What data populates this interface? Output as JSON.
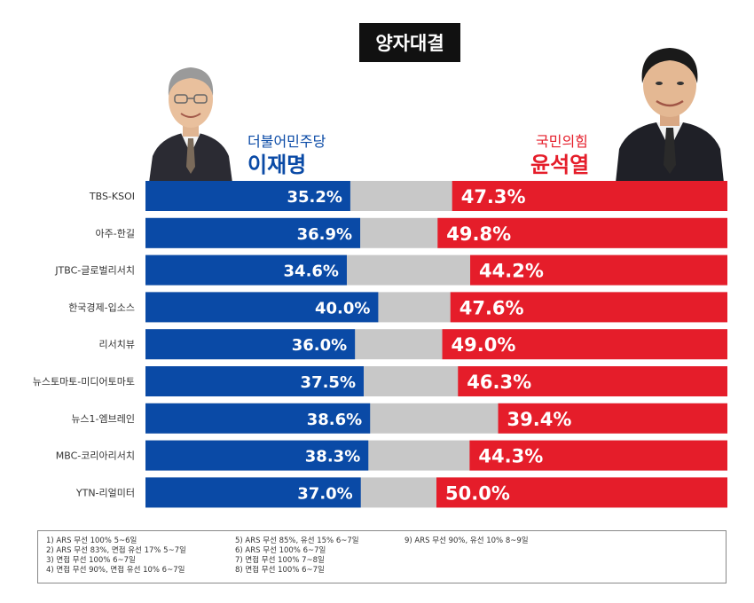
{
  "title": "양자대결",
  "candidates": {
    "left": {
      "party": "더불어민주당",
      "name": "이재명",
      "color": "#0a4aa6"
    },
    "right": {
      "party": "국민의힘",
      "name": "윤석열",
      "color": "#e51d2a"
    }
  },
  "chart_data": {
    "type": "bar",
    "subtype": "diverging-stacked-horizontal",
    "categories": [
      "TBS-KSOI",
      "아주-한길",
      "JTBC-글로벌리서치",
      "한국경제-입소스",
      "리서치뷰",
      "뉴스토마토-미디어토마토",
      "뉴스1-엠브레인",
      "MBC-코리아리서치",
      "YTN-리얼미터"
    ],
    "series": [
      {
        "name": "이재명",
        "color": "#0a4aa6",
        "values": [
          35.2,
          36.9,
          34.6,
          40.0,
          36.0,
          37.5,
          38.6,
          38.3,
          37.0
        ],
        "labels": [
          "35.2%",
          "36.9%",
          "34.6%",
          "40.0%",
          "36.0%",
          "37.5%",
          "38.6%",
          "38.3%",
          "37.0%"
        ]
      },
      {
        "name": "윤석열",
        "color": "#e51d2a",
        "values": [
          47.3,
          49.8,
          44.2,
          47.6,
          49.0,
          46.3,
          39.4,
          44.3,
          50.0
        ],
        "labels": [
          "47.3%",
          "49.8%",
          "44.2%",
          "47.6%",
          "49.0%",
          "46.3%",
          "39.4%",
          "44.3%",
          "50.0%"
        ]
      }
    ],
    "remainder_color": "#c8c8c8",
    "xlim": [
      0,
      100
    ]
  },
  "footnotes": {
    "col1": [
      "1) ARS 무선 100% 5~6일",
      "2) ARS 무선 83%, 면접 유선 17% 5~7일",
      "3) 면접 무선 100% 6~7일",
      "4) 면접 무선 90%, 면접 유선 10% 6~7일"
    ],
    "col2": [
      "5) ARS 무선 85%, 유선 15% 6~7일",
      "6) ARS 무선 100% 6~7일",
      "7) 면접 무선 100% 7~8일",
      "8) 면접 무선 100% 6~7일"
    ],
    "col3": [
      "9) ARS 무선 90%, 유선 10% 8~9일"
    ]
  }
}
